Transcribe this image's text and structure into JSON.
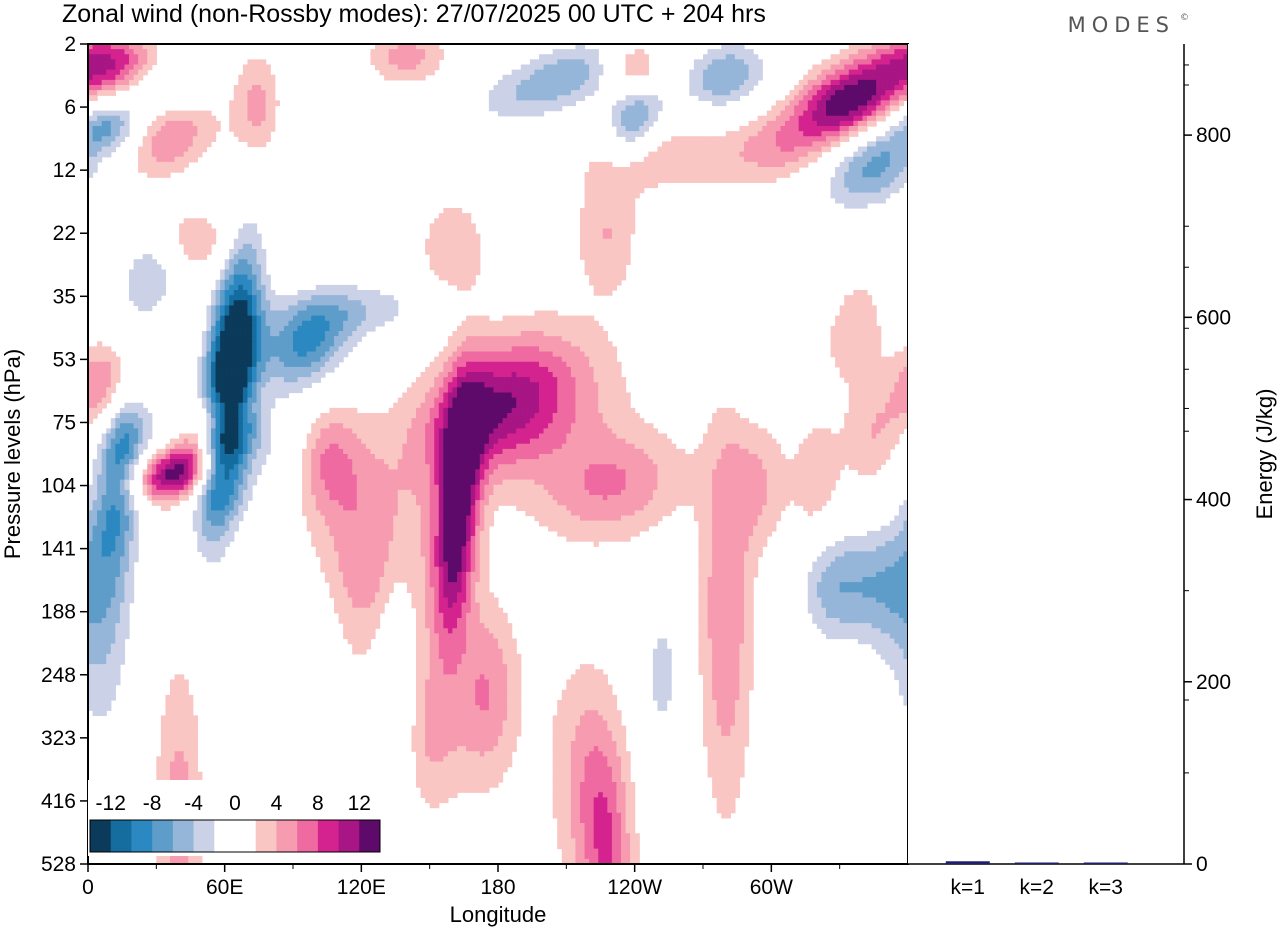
{
  "chart_data": {
    "type": "heatmap",
    "title": "Zonal wind (non-Rossby modes):  27/07/2025  00 UTC  + 204 hrs",
    "brand": "MODES",
    "brand_mark": "©",
    "xlabel": "Longitude",
    "ylabel": "Pressure levels (hPa)",
    "x_ticks": [
      "0",
      "60E",
      "120E",
      "180",
      "120W",
      "60W"
    ],
    "x_tick_values": [
      0,
      60,
      120,
      180,
      240,
      300
    ],
    "x_range": [
      0,
      360
    ],
    "y_ticks": [
      "2",
      "6",
      "12",
      "22",
      "35",
      "53",
      "75",
      "104",
      "141",
      "188",
      "248",
      "323",
      "416",
      "528"
    ],
    "colorbar": {
      "labels": [
        "-12",
        "-8",
        "-4",
        "0",
        "4",
        "8",
        "12"
      ],
      "levels": [
        -14,
        -12,
        -10,
        -8,
        -6,
        -4,
        -2,
        2,
        4,
        6,
        8,
        10,
        12,
        14
      ],
      "colors": [
        "#0b3a5a",
        "#156c9e",
        "#2c88c0",
        "#5e9cc9",
        "#96b6d9",
        "#cbd1e6",
        "#ffffff",
        "#ffffff",
        "#f9c6c4",
        "#f79cb0",
        "#ef6aa1",
        "#d4238e",
        "#a81584",
        "#5e0a6b"
      ]
    },
    "blobs": [
      {
        "lon": 62,
        "lev": 5.5,
        "sx": 9,
        "sy": 1.3,
        "amp": -22,
        "rot": -0.55
      },
      {
        "lon": 95,
        "lev": 4.8,
        "sx": 14,
        "sy": 0.5,
        "amp": -10,
        "rot": -0.25
      },
      {
        "lon": 120,
        "lev": 4.2,
        "sx": 25,
        "sy": 0.35,
        "amp": -5,
        "rot": -0.1
      },
      {
        "lon": 60,
        "lev": 6.3,
        "sx": 24,
        "sy": 0.6,
        "amp": -6,
        "rot": 0.15
      },
      {
        "lon": 15,
        "lev": 6.5,
        "sx": 8,
        "sy": 1.2,
        "amp": -10,
        "rot": -0.4
      },
      {
        "lon": 5,
        "lev": 9,
        "sx": 12,
        "sy": 1.8,
        "amp": -6,
        "rot": 0
      },
      {
        "lon": 28,
        "lev": 3.7,
        "sx": 10,
        "sy": 0.5,
        "amp": -5,
        "rot": 0
      },
      {
        "lon": 40,
        "lev": 6.8,
        "sx": 16,
        "sy": 0.3,
        "amp": 14,
        "rot": -0.35
      },
      {
        "lon": 55,
        "lev": 6.0,
        "sx": 11,
        "sy": 0.4,
        "amp": 13,
        "rot": -0.55
      },
      {
        "lon": 10,
        "lev": 5.4,
        "sx": 12,
        "sy": 0.5,
        "amp": 9,
        "rot": -0.25
      },
      {
        "lon": 162,
        "lev": 7.5,
        "sx": 7,
        "sy": 1.3,
        "amp": 14,
        "rot": -0.4
      },
      {
        "lon": 175,
        "lev": 5.8,
        "sx": 22,
        "sy": 0.7,
        "amp": 9,
        "rot": -0.4
      },
      {
        "lon": 125,
        "lev": 8.0,
        "sx": 18,
        "sy": 1.2,
        "amp": 6,
        "rot": 0
      },
      {
        "lon": 105,
        "lev": 6.6,
        "sx": 10,
        "sy": 0.6,
        "amp": 6,
        "rot": 0
      },
      {
        "lon": 200,
        "lev": 5.7,
        "sx": 24,
        "sy": 0.8,
        "amp": 5,
        "rot": -0.2
      },
      {
        "lon": 230,
        "lev": 7.0,
        "sx": 22,
        "sy": 0.6,
        "amp": 6,
        "rot": -0.15
      },
      {
        "lon": 175,
        "lev": 10.3,
        "sx": 10,
        "sy": 1.0,
        "amp": 6,
        "rot": 0
      },
      {
        "lon": 218,
        "lev": 11.8,
        "sx": 12,
        "sy": 1.4,
        "amp": 4,
        "rot": 0.2
      },
      {
        "lon": 280,
        "lev": 9.0,
        "sx": 8,
        "sy": 2.2,
        "amp": 6,
        "rot": 0
      },
      {
        "lon": 295,
        "lev": 7.0,
        "sx": 9,
        "sy": 0.7,
        "amp": 4,
        "rot": 0
      },
      {
        "lon": 320,
        "lev": 7.0,
        "sx": 7,
        "sy": 0.7,
        "amp": 4,
        "rot": 0
      },
      {
        "lon": 345,
        "lev": 6.3,
        "sx": 10,
        "sy": 0.6,
        "amp": 4,
        "rot": 0
      },
      {
        "lon": 252,
        "lev": 10.0,
        "sx": 6,
        "sy": 0.9,
        "amp": -5,
        "rot": 0
      },
      {
        "lon": 325,
        "lev": 8.6,
        "sx": 10,
        "sy": 0.7,
        "amp": -6,
        "rot": 0
      },
      {
        "lon": 345,
        "lev": 8.6,
        "sx": 12,
        "sy": 0.7,
        "amp": -6,
        "rot": 0
      },
      {
        "lon": 135,
        "lev": 10.0,
        "sx": 6,
        "sy": 1.6,
        "amp": -4,
        "rot": 0
      },
      {
        "lon": 102,
        "lev": 11.0,
        "sx": 6,
        "sy": 1.5,
        "amp": -4,
        "rot": 0
      },
      {
        "lon": 50,
        "lev": 3.0,
        "sx": 10,
        "sy": 0.4,
        "amp": 5,
        "rot": -0.2
      },
      {
        "lon": 55,
        "lev": 2.5,
        "sx": 8,
        "sy": 0.3,
        "amp": -4,
        "rot": 0
      },
      {
        "lon": 75,
        "lev": 1.0,
        "sx": 8,
        "sy": 0.6,
        "amp": 5,
        "rot": 0
      },
      {
        "lon": 100,
        "lev": 1.2,
        "sx": 10,
        "sy": 0.8,
        "amp": -4,
        "rot": 0
      },
      {
        "lon": 35,
        "lev": 1.5,
        "sx": 14,
        "sy": 0.4,
        "amp": 6,
        "rot": -0.3
      },
      {
        "lon": 8,
        "lev": 0.3,
        "sx": 16,
        "sy": 0.35,
        "amp": 10,
        "rot": 0
      },
      {
        "lon": 35,
        "lev": 0.6,
        "sx": 12,
        "sy": 0.3,
        "amp": -5,
        "rot": -0.2
      },
      {
        "lon": 10,
        "lev": 1.3,
        "sx": 10,
        "sy": 0.3,
        "amp": -7,
        "rot": 0
      },
      {
        "lon": 140,
        "lev": 0.2,
        "sx": 12,
        "sy": 0.3,
        "amp": 5,
        "rot": 0
      },
      {
        "lon": 190,
        "lev": 0.8,
        "sx": 20,
        "sy": 0.4,
        "amp": -5,
        "rot": -0.3
      },
      {
        "lon": 215,
        "lev": 0.4,
        "sx": 16,
        "sy": 0.4,
        "amp": -5,
        "rot": -0.3
      },
      {
        "lon": 240,
        "lev": 1.2,
        "sx": 9,
        "sy": 0.4,
        "amp": -9,
        "rot": -0.3
      },
      {
        "lon": 280,
        "lev": 0.5,
        "sx": 14,
        "sy": 0.4,
        "amp": -8,
        "rot": -0.2
      },
      {
        "lon": 335,
        "lev": 0.9,
        "sx": 16,
        "sy": 0.4,
        "amp": 14,
        "rot": -0.35
      },
      {
        "lon": 345,
        "lev": 1.9,
        "sx": 16,
        "sy": 0.5,
        "amp": -9,
        "rot": -0.35
      },
      {
        "lon": 305,
        "lev": 1.6,
        "sx": 18,
        "sy": 0.4,
        "amp": 5,
        "rot": -0.2
      },
      {
        "lon": 250,
        "lev": 1.8,
        "sx": 22,
        "sy": 0.4,
        "amp": 4,
        "rot": 0
      },
      {
        "lon": 240,
        "lev": 0.4,
        "sx": 8,
        "sy": 0.3,
        "amp": 6,
        "rot": 0
      },
      {
        "lon": 228,
        "lev": 3.0,
        "sx": 10,
        "sy": 0.7,
        "amp": 4,
        "rot": 0
      },
      {
        "lon": 260,
        "lev": 3.2,
        "sx": 9,
        "sy": 0.5,
        "amp": -4,
        "rot": 0
      },
      {
        "lon": 160,
        "lev": 3.3,
        "sx": 10,
        "sy": 0.6,
        "amp": 4,
        "rot": 0
      },
      {
        "lon": 335,
        "lev": 4.5,
        "sx": 10,
        "sy": 0.6,
        "amp": 4,
        "rot": 0
      },
      {
        "lon": 290,
        "lev": 4.6,
        "sx": 10,
        "sy": 0.6,
        "amp": -4,
        "rot": 0
      },
      {
        "lon": 320,
        "lev": 3.6,
        "sx": 8,
        "sy": 0.6,
        "amp": -4,
        "rot": 0
      },
      {
        "lon": 40,
        "lev": 12.3,
        "sx": 8,
        "sy": 1.8,
        "amp": 5,
        "rot": 0
      },
      {
        "lon": 70,
        "lev": 11.6,
        "sx": 10,
        "sy": 1.3,
        "amp": -4,
        "rot": 0
      },
      {
        "lon": 228,
        "lev": 12.8,
        "sx": 8,
        "sy": 1.4,
        "amp": 6,
        "rot": 0.2
      },
      {
        "lon": 150,
        "lev": 11.0,
        "sx": 10,
        "sy": 0.9,
        "amp": 4,
        "rot": 0
      }
    ],
    "energy": {
      "categories": [
        "k=1",
        "k=2",
        "k=3"
      ],
      "values": [
        3,
        1.5,
        1
      ],
      "ylabel": "Energy (J/kg)",
      "y_ticks": [
        0,
        200,
        400,
        600,
        800
      ],
      "ylim": [
        0,
        900
      ],
      "bar_color": "#1f1f6e"
    }
  }
}
